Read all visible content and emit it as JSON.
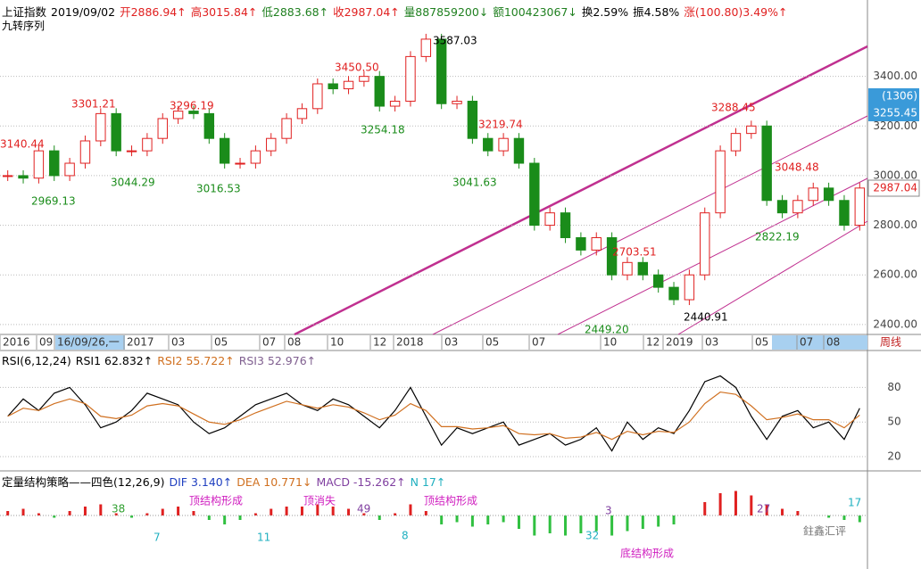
{
  "chart_data": {
    "type": "candlestick",
    "header": [
      {
        "text": "上证指数",
        "color": "#000000"
      },
      {
        "text": "2019/09/02",
        "color": "#000000"
      },
      {
        "text": "开2886.94↑",
        "color": "#e02020"
      },
      {
        "text": "高3015.84↑",
        "color": "#e02020"
      },
      {
        "text": "低2883.68↑",
        "color": "#208020"
      },
      {
        "text": "收2987.04↑",
        "color": "#e02020"
      },
      {
        "text": "量887859200↓",
        "color": "#208020"
      },
      {
        "text": "额100423067↓",
        "color": "#208020"
      },
      {
        "text": "换2.59%",
        "color": "#000000"
      },
      {
        "text": "振4.58%",
        "color": "#000000"
      },
      {
        "text": "涨(100.80)3.49%↑",
        "color": "#e02020"
      }
    ],
    "subtitle": "九转序列",
    "closes": [
      3000,
      2990,
      3100,
      3000,
      3050,
      3140,
      3250,
      3100,
      3100,
      3150,
      3230,
      3260,
      3250,
      3150,
      3050,
      3050,
      3100,
      3150,
      3230,
      3270,
      3370,
      3350,
      3380,
      3400,
      3280,
      3300,
      3480,
      3550,
      3290,
      3300,
      3150,
      3100,
      3150,
      3050,
      2800,
      2850,
      2750,
      2700,
      2750,
      2600,
      2650,
      2600,
      2550,
      2500,
      2600,
      2850,
      3100,
      3170,
      3200,
      2900,
      2850,
      2900,
      2950,
      2900,
      2800,
      2950
    ],
    "up_color": "#e02020",
    "down_color": "#1a8c1a",
    "ylim": [
      2360,
      3600
    ],
    "yticks": [
      {
        "value": 2400,
        "label": "2400.00"
      },
      {
        "value": 2600,
        "label": "2600.00"
      },
      {
        "value": 2800,
        "label": "2800.00"
      },
      {
        "value": 3000,
        "label": "3000.00"
      },
      {
        "value": 3200,
        "label": "3200.00"
      },
      {
        "value": 3400,
        "label": "3400.00"
      }
    ],
    "annotations": [
      "3140.44",
      "2969.13",
      "3301.21",
      "3044.29",
      "3296.19",
      "3016.53",
      "3450.50",
      "3587.03",
      "3254.18",
      "3219.74",
      "3041.63",
      "2703.51",
      "2449.20",
      "2440.91",
      "3288.45",
      "3048.48",
      "2822.19"
    ],
    "axis_boxes": [
      "(1306)",
      "3255.45",
      "2987.04"
    ],
    "x_labels": [
      "2016",
      "09",
      "16/09/26,一",
      "2017",
      "03",
      "05",
      "07",
      "08",
      "10",
      "12",
      "2018",
      "03",
      "05",
      "07",
      "10",
      "12",
      "2019",
      "03",
      "05",
      "07",
      "08",
      "周线"
    ],
    "rsi": {
      "header": [
        {
          "text": "RSI(6,12,24)",
          "color": "#000000"
        },
        {
          "text": "RSI1 62.832↑",
          "color": "#000000"
        },
        {
          "text": "RSI2 55.722↑",
          "color": "#d07020"
        },
        {
          "text": "RSI3 52.976↑",
          "color": "#806090"
        }
      ],
      "ylim": [
        10,
        95
      ],
      "yticks": [
        20,
        50,
        80
      ],
      "series": [
        {
          "name": "RSI1",
          "color": "#000000",
          "values": [
            55,
            70,
            60,
            75,
            80,
            65,
            45,
            50,
            60,
            75,
            70,
            65,
            50,
            40,
            45,
            55,
            65,
            70,
            75,
            65,
            60,
            70,
            65,
            55,
            45,
            60,
            80,
            55,
            30,
            45,
            40,
            45,
            50,
            30,
            35,
            40,
            30,
            35,
            45,
            25,
            50,
            35,
            45,
            40,
            60,
            85,
            90,
            80,
            55,
            35,
            55,
            60,
            45,
            50,
            35,
            62
          ]
        },
        {
          "name": "RSI2",
          "color": "#d07020",
          "values": [
            55,
            62,
            60,
            66,
            70,
            66,
            55,
            53,
            56,
            64,
            66,
            64,
            57,
            50,
            48,
            52,
            58,
            63,
            68,
            65,
            62,
            65,
            63,
            58,
            52,
            56,
            66,
            60,
            46,
            46,
            44,
            45,
            47,
            40,
            39,
            40,
            36,
            37,
            41,
            35,
            42,
            39,
            42,
            41,
            50,
            66,
            76,
            74,
            64,
            52,
            54,
            57,
            52,
            52,
            45,
            56
          ]
        }
      ]
    },
    "macd": {
      "header": [
        {
          "text": "定量结构策略——四色(12,26,9)",
          "color": "#000000"
        },
        {
          "text": "DIF 3.140↑",
          "color": "#2040c0"
        },
        {
          "text": "DEA 10.771↓",
          "color": "#d07020"
        },
        {
          "text": "MACD -15.262↑",
          "color": "#8040a0"
        },
        {
          "text": "N 17↑",
          "color": "#20b0c0"
        }
      ],
      "hist": [
        10,
        15,
        5,
        -5,
        10,
        20,
        25,
        5,
        -5,
        5,
        15,
        20,
        10,
        -10,
        -20,
        -10,
        5,
        15,
        20,
        20,
        25,
        20,
        15,
        5,
        -10,
        5,
        25,
        10,
        -20,
        -15,
        -25,
        -20,
        -15,
        -30,
        -45,
        -40,
        -45,
        -40,
        -35,
        -45,
        -35,
        -30,
        -25,
        -20,
        0,
        30,
        50,
        55,
        45,
        25,
        15,
        10,
        0,
        -5,
        -10,
        -15
      ],
      "pos_color": "#e02020",
      "neg_color": "#30c040",
      "annotations": [
        "38",
        "7",
        "11",
        "49",
        "8",
        "3",
        "32",
        "27",
        "顶结构形成",
        "顶消失",
        "顶结构形成",
        "底结构形成",
        "17"
      ]
    },
    "watermark": "鉒鑫汇评"
  }
}
